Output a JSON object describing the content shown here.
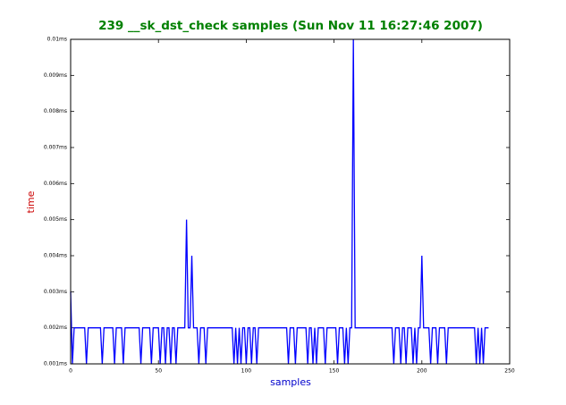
{
  "chart_data": {
    "type": "line",
    "title": "239 __sk_dst_check samples (Sun Nov 11 16:27:46 2007)",
    "title_color": "#008000",
    "x_label": "samples",
    "x_label_color": "#0000cc",
    "y_label": "time",
    "y_label_color": "#cc0000",
    "xlim": [
      0,
      250
    ],
    "xticks": [
      0,
      50,
      100,
      150,
      200,
      250
    ],
    "ylim": [
      0.001,
      0.01
    ],
    "yticks": [
      {
        "value": 0.001,
        "label": "0.001ms"
      },
      {
        "value": 0.002,
        "label": "0.002ms"
      },
      {
        "value": 0.003,
        "label": "0.003ms"
      },
      {
        "value": 0.004,
        "label": "0.004ms"
      },
      {
        "value": 0.005,
        "label": "0.005ms"
      },
      {
        "value": 0.006,
        "label": "0.006ms"
      },
      {
        "value": 0.007,
        "label": "0.007ms"
      },
      {
        "value": 0.008,
        "label": "0.008ms"
      },
      {
        "value": 0.009,
        "label": "0.009ms"
      },
      {
        "value": 0.01,
        "label": "0.01ms"
      }
    ],
    "grid": false,
    "color": "#0000ff",
    "values": [
      0.003,
      0.001,
      0.002,
      0.002,
      0.002,
      0.002,
      0.002,
      0.002,
      0.002,
      0.001,
      0.002,
      0.002,
      0.002,
      0.002,
      0.002,
      0.002,
      0.002,
      0.002,
      0.001,
      0.002,
      0.002,
      0.002,
      0.002,
      0.002,
      0.002,
      0.001,
      0.002,
      0.002,
      0.002,
      0.002,
      0.001,
      0.002,
      0.002,
      0.002,
      0.002,
      0.002,
      0.002,
      0.002,
      0.002,
      0.002,
      0.001,
      0.002,
      0.002,
      0.002,
      0.002,
      0.002,
      0.001,
      0.002,
      0.002,
      0.002,
      0.002,
      0.001,
      0.002,
      0.002,
      0.001,
      0.002,
      0.002,
      0.001,
      0.002,
      0.002,
      0.001,
      0.002,
      0.002,
      0.002,
      0.002,
      0.002,
      0.005,
      0.002,
      0.002,
      0.004,
      0.002,
      0.002,
      0.002,
      0.001,
      0.002,
      0.002,
      0.002,
      0.001,
      0.002,
      0.002,
      0.002,
      0.002,
      0.002,
      0.002,
      0.002,
      0.002,
      0.002,
      0.002,
      0.002,
      0.002,
      0.002,
      0.002,
      0.002,
      0.001,
      0.002,
      0.001,
      0.002,
      0.001,
      0.002,
      0.002,
      0.001,
      0.002,
      0.002,
      0.001,
      0.002,
      0.002,
      0.001,
      0.002,
      0.002,
      0.002,
      0.002,
      0.002,
      0.002,
      0.002,
      0.002,
      0.002,
      0.002,
      0.002,
      0.002,
      0.002,
      0.002,
      0.002,
      0.002,
      0.002,
      0.001,
      0.002,
      0.002,
      0.002,
      0.001,
      0.002,
      0.002,
      0.002,
      0.002,
      0.002,
      0.002,
      0.001,
      0.002,
      0.002,
      0.001,
      0.002,
      0.001,
      0.002,
      0.002,
      0.002,
      0.002,
      0.001,
      0.002,
      0.002,
      0.002,
      0.002,
      0.002,
      0.002,
      0.001,
      0.002,
      0.002,
      0.002,
      0.001,
      0.002,
      0.001,
      0.002,
      0.002,
      0.01,
      0.002,
      0.002,
      0.002,
      0.002,
      0.002,
      0.002,
      0.002,
      0.002,
      0.002,
      0.002,
      0.002,
      0.002,
      0.002,
      0.002,
      0.002,
      0.002,
      0.002,
      0.002,
      0.002,
      0.002,
      0.002,
      0.002,
      0.001,
      0.002,
      0.002,
      0.002,
      0.001,
      0.002,
      0.002,
      0.001,
      0.002,
      0.002,
      0.002,
      0.001,
      0.002,
      0.001,
      0.002,
      0.002,
      0.004,
      0.002,
      0.002,
      0.002,
      0.002,
      0.001,
      0.002,
      0.002,
      0.002,
      0.001,
      0.002,
      0.002,
      0.002,
      0.002,
      0.001,
      0.002,
      0.002,
      0.002,
      0.002,
      0.002,
      0.002,
      0.002,
      0.002,
      0.002,
      0.002,
      0.002,
      0.002,
      0.002,
      0.002,
      0.002,
      0.002,
      0.001,
      0.002,
      0.001,
      0.002,
      0.001,
      0.002,
      0.002,
      0.002
    ]
  }
}
